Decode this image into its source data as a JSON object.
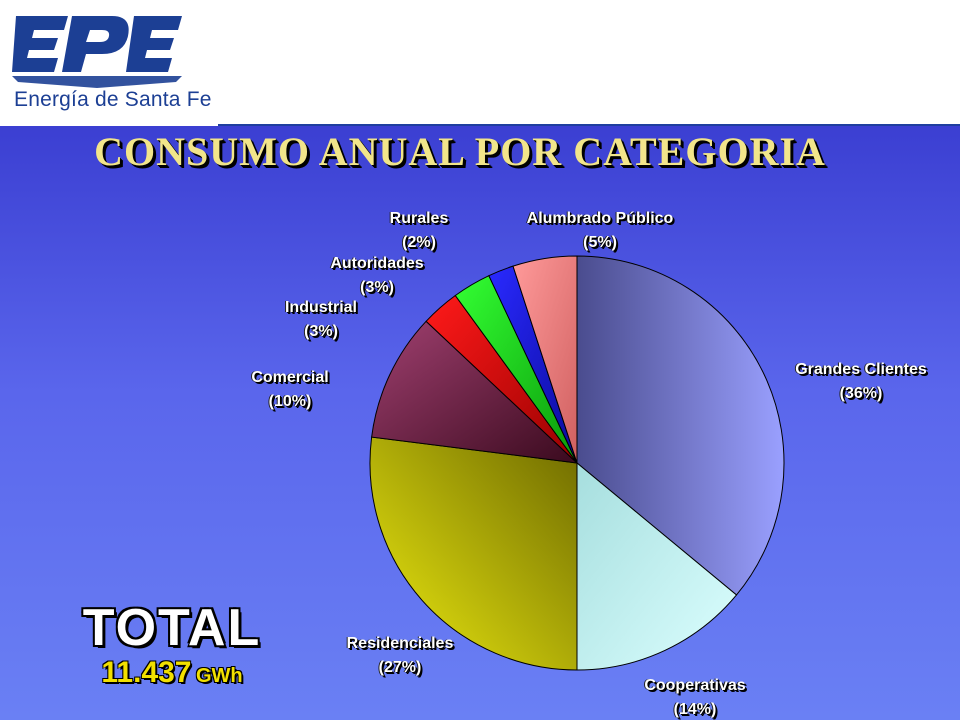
{
  "header": {
    "logo_text": "EPE",
    "logo_subtitle": "Energía de Santa Fe",
    "colors": {
      "brand": "#1c3f94"
    }
  },
  "chart_data": {
    "type": "pie",
    "title": "CONSUMO ANUAL POR CATEGORIA",
    "slices": [
      {
        "key": "grandes",
        "label": "Grandes Clientes",
        "pct_label": "(36%)",
        "value": 36,
        "color": "#8a90ee"
      },
      {
        "key": "cooperativas",
        "label": "Cooperativas",
        "pct_label": "(14%)",
        "value": 14,
        "color": "#bfeeee"
      },
      {
        "key": "residenciales",
        "label": "Residenciales",
        "pct_label": "(27%)",
        "value": 27,
        "color": "#d8d200"
      },
      {
        "key": "comercial",
        "label": "Comercial",
        "pct_label": "(10%)",
        "value": 10,
        "color": "#8a2d55"
      },
      {
        "key": "industrial",
        "label": "Industrial",
        "pct_label": "(3%)",
        "value": 3,
        "color": "#ee0000"
      },
      {
        "key": "autoridades",
        "label": "Autoridades",
        "pct_label": "(3%)",
        "value": 3,
        "color": "#22dd22"
      },
      {
        "key": "rurales",
        "label": "Rurales",
        "pct_label": "(2%)",
        "value": 2,
        "color": "#1515d0"
      },
      {
        "key": "alumbrado",
        "label": "Alumbrado Público",
        "pct_label": "(5%)",
        "value": 5,
        "color": "#f28080"
      }
    ]
  },
  "total": {
    "title": "TOTAL",
    "value": "11.437",
    "unit": "GWh"
  }
}
